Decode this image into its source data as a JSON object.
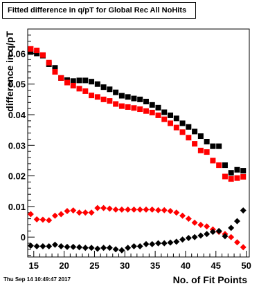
{
  "window_title": "Fitted difference in q/pT for Global Rec All NoHits",
  "timestamp": "Thu Sep 14 10:49:47 2017",
  "chart_data": {
    "type": "scatter",
    "title": "Fitted difference in q/pT for Global Rec All NoHits",
    "xlabel": "No. of Fit Points",
    "ylabel": "difference in q/pT",
    "xlim": [
      14,
      50.5
    ],
    "ylim": [
      -0.0065,
      0.068
    ],
    "x_ticks": [
      15,
      20,
      25,
      30,
      35,
      40,
      45,
      50
    ],
    "y_ticks": [
      {
        "value": 0,
        "label": "0"
      },
      {
        "value": 0.01,
        "label": "0.01"
      },
      {
        "value": 0.02,
        "label": "0.02"
      },
      {
        "value": 0.03,
        "label": "0.03"
      },
      {
        "value": 0.04,
        "label": "0.04"
      },
      {
        "value": 0.05,
        "label": "0.05"
      },
      {
        "value": 0.06,
        "label": "0.06"
      }
    ],
    "grid": false,
    "x": [
      14.5,
      15.5,
      16.5,
      17.5,
      18.5,
      19.5,
      20.5,
      21.5,
      22.5,
      23.5,
      24.5,
      25.5,
      26.5,
      27.5,
      28.5,
      29.5,
      30.5,
      31.5,
      32.5,
      33.5,
      34.5,
      35.5,
      36.5,
      37.5,
      38.5,
      39.5,
      40.5,
      41.5,
      42.5,
      43.5,
      44.5,
      45.5,
      46.5,
      47.5,
      48.5,
      49.5
    ],
    "series": [
      {
        "color": "#000000",
        "marker": "square",
        "values": [
          0.0605,
          0.06,
          0.0593,
          0.0565,
          0.0553,
          0.052,
          0.0513,
          0.051,
          0.0512,
          0.0512,
          0.0508,
          0.05,
          0.049,
          0.0483,
          0.0473,
          0.0462,
          0.0458,
          0.0453,
          0.045,
          0.0443,
          0.0432,
          0.0423,
          0.0408,
          0.0398,
          0.0388,
          0.0372,
          0.036,
          0.0345,
          0.033,
          0.0312,
          0.0297,
          0.0297,
          0.0235,
          0.021,
          0.022,
          0.0217
        ]
      },
      {
        "color": "#ff0000",
        "marker": "square",
        "values": [
          0.0615,
          0.061,
          0.0595,
          0.057,
          0.054,
          0.052,
          0.0505,
          0.0495,
          0.0485,
          0.0477,
          0.0463,
          0.0458,
          0.045,
          0.0445,
          0.0435,
          0.0428,
          0.0425,
          0.0422,
          0.0418,
          0.0412,
          0.0407,
          0.0398,
          0.0385,
          0.0372,
          0.0358,
          0.0343,
          0.0325,
          0.0305,
          0.0283,
          0.0278,
          0.025,
          0.0235,
          0.0198,
          0.019,
          0.0193,
          0.0197
        ]
      },
      {
        "color": "#ff0000",
        "marker": "diamond",
        "values": [
          0.0075,
          0.0058,
          0.0057,
          0.0055,
          0.007,
          0.0075,
          0.0085,
          0.0087,
          0.008,
          0.008,
          0.008,
          0.0095,
          0.0095,
          0.0093,
          0.009,
          0.009,
          0.009,
          0.009,
          0.009,
          0.009,
          0.009,
          0.0088,
          0.0088,
          0.0085,
          0.008,
          0.007,
          0.006,
          0.0047,
          0.004,
          0.0035,
          0.0025,
          0.0017,
          0.001,
          0.0,
          -0.0017,
          -0.0033
        ]
      },
      {
        "color": "#000000",
        "marker": "diamond",
        "values": [
          -0.0028,
          -0.003,
          -0.003,
          -0.003,
          -0.0025,
          -0.003,
          -0.0032,
          -0.0032,
          -0.0033,
          -0.0035,
          -0.0035,
          -0.0038,
          -0.0035,
          -0.0035,
          -0.004,
          -0.0043,
          -0.0035,
          -0.003,
          -0.003,
          -0.0023,
          -0.0023,
          -0.002,
          -0.002,
          -0.0018,
          -0.0015,
          -0.0008,
          -0.0003,
          0.0,
          0.0005,
          0.001,
          0.0017,
          0.002,
          0.0003,
          0.003,
          0.0052,
          0.0087
        ]
      }
    ]
  }
}
